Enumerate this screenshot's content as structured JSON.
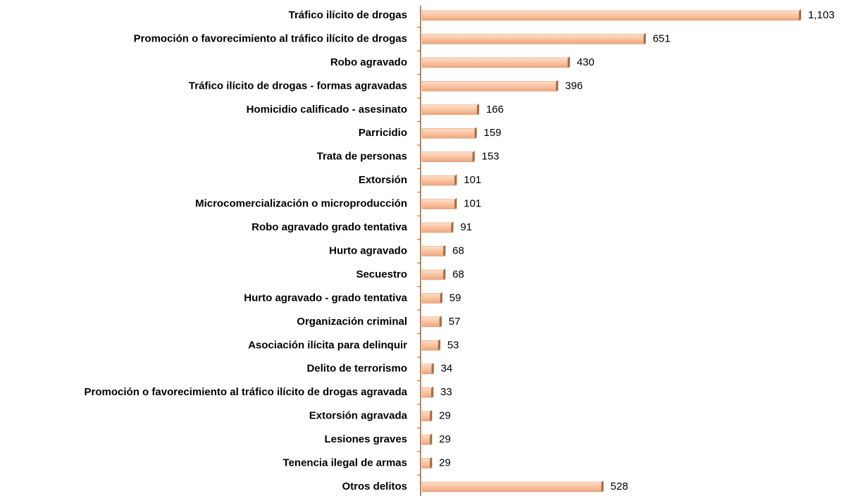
{
  "chart_data": {
    "type": "barh",
    "categories": [
      "Tráfico ilícito de drogas",
      "Promoción o favorecimiento al tráfico ilícito de drogas",
      "Robo agravado",
      "Tráfico ilícito de drogas - formas agravadas",
      "Homicidio calificado - asesinato",
      "Parricidio",
      "Trata de personas",
      "Extorsión",
      "Microcomercialización o microproducción",
      "Robo agravado grado tentativa",
      "Hurto agravado",
      "Secuestro",
      "Hurto agravado - grado tentativa",
      "Organización criminal",
      "Asociación ilícita para delinquir",
      "Delito de terrorismo",
      "Promoción o favorecimiento al tráfico ilícito de drogas agravada",
      "Extorsión agravada",
      "Lesiones graves",
      "Tenencia ilegal de armas",
      "Otros delitos"
    ],
    "values": [
      1103,
      651,
      430,
      396,
      166,
      159,
      153,
      101,
      101,
      91,
      68,
      68,
      59,
      57,
      53,
      34,
      33,
      29,
      29,
      29,
      528
    ],
    "value_labels": [
      "1,103",
      "651",
      "430",
      "396",
      "166",
      "159",
      "153",
      "101",
      "101",
      "91",
      "68",
      "68",
      "59",
      "57",
      "53",
      "34",
      "33",
      "29",
      "29",
      "29",
      "528"
    ],
    "color": "#fbc3a0"
  }
}
